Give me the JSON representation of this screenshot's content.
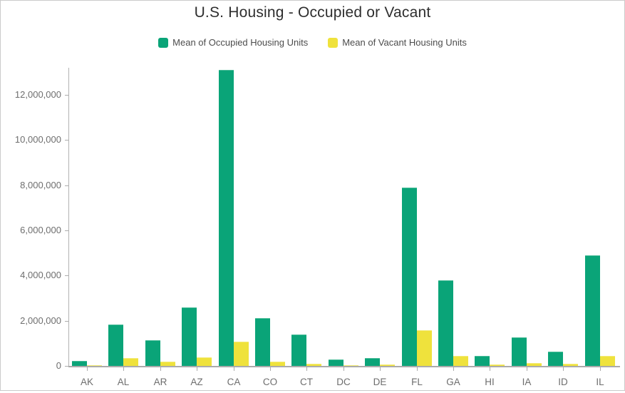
{
  "title": "U.S. Housing - Occupied or Vacant",
  "legend": [
    {
      "label": "Mean of Occupied Housing Units",
      "color": "#0aa478",
      "border": "#4abc98",
      "icon": "legend-swatch-occupied"
    },
    {
      "label": "Mean of Vacant Housing Units",
      "color": "#efe23c",
      "border": "#f3ea76",
      "icon": "legend-swatch-vacant"
    }
  ],
  "colors": {
    "occupied_green": "#0aa478",
    "vacant_yellow": "#efe23c",
    "axis_line": "#ababab",
    "axis_text": "#6e6e6e",
    "title_text": "#2e2e2e",
    "legend_text": "#4c4c4c",
    "frame_border": "#cbcbcb",
    "background": "#ffffff"
  },
  "chart_data": {
    "type": "bar",
    "title": "U.S. Housing - Occupied or Vacant",
    "xlabel": "",
    "ylabel": "",
    "grid": false,
    "legend_position": "top",
    "categories": [
      "AK",
      "AL",
      "AR",
      "AZ",
      "CA",
      "CO",
      "CT",
      "DC",
      "DE",
      "FL",
      "GA",
      "HI",
      "IA",
      "ID",
      "IL"
    ],
    "series": [
      {
        "name": "Mean of Occupied Housing Units",
        "color": "#0aa478",
        "values": [
          220000,
          1840000,
          1130000,
          2590000,
          13120000,
          2120000,
          1390000,
          290000,
          360000,
          7910000,
          3790000,
          430000,
          1260000,
          620000,
          4880000
        ]
      },
      {
        "name": "Mean of Vacant Housing Units",
        "color": "#efe23c",
        "values": [
          45000,
          340000,
          190000,
          370000,
          1070000,
          200000,
          105000,
          30000,
          65000,
          1590000,
          450000,
          75000,
          125000,
          95000,
          450000
        ]
      }
    ],
    "ylim": [
      0,
      13200000
    ],
    "y_ticks": [
      0,
      2000000,
      4000000,
      6000000,
      8000000,
      10000000,
      12000000
    ],
    "y_tick_labels": [
      "0",
      "2,000,000",
      "4,000,000",
      "6,000,000",
      "8,000,000",
      "10,000,000",
      "12,000,000"
    ]
  }
}
